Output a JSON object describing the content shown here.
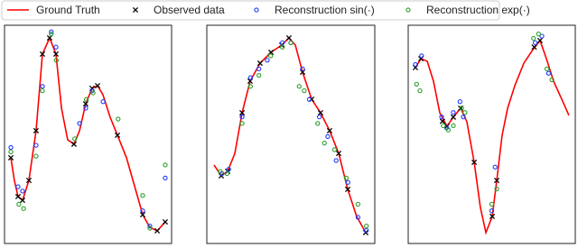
{
  "chart_data": [
    {
      "type": "line-scatter",
      "xlim": [
        0,
        100
      ],
      "ylim": [
        0,
        100
      ],
      "series": [
        {
          "name": "Ground Truth",
          "kind": "line",
          "color": "#ff0000",
          "x": [
            3.8,
            5.9,
            8.1,
            10.8,
            14.6,
            18.9,
            22.7,
            27.0,
            30.8,
            34.1,
            37.8,
            41.6,
            44.9,
            48.6,
            52.4,
            55.7,
            58.9,
            63.2,
            67.6,
            73.0,
            78.4,
            82.7,
            87.0,
            91.4,
            96.2
          ],
          "values": [
            39.3,
            28.9,
            21.5,
            19.8,
            28.9,
            51.7,
            86.8,
            94.2,
            86.8,
            62.0,
            47.5,
            45.5,
            51.7,
            64.0,
            71.1,
            72.3,
            68.2,
            57.9,
            49.6,
            39.3,
            24.8,
            13.2,
            7.4,
            5.8,
            9.9
          ]
        },
        {
          "name": "Observed data",
          "kind": "cross",
          "color": "#000000",
          "x": [
            3.8,
            8.1,
            10.8,
            14.6,
            18.9,
            22.7,
            27.0,
            30.8,
            41.6,
            48.6,
            52.4,
            55.7,
            67.6,
            82.7,
            91.4,
            96.2
          ],
          "values": [
            39.3,
            21.5,
            19.8,
            28.9,
            51.7,
            86.8,
            94.2,
            86.8,
            45.5,
            64.0,
            71.1,
            72.3,
            49.6,
            13.2,
            5.8,
            9.9
          ]
        },
        {
          "name": "Reconstruction sin(·)",
          "kind": "circle",
          "color": "#1f3dff",
          "x": [
            3.8,
            8.1,
            10.8,
            18.9,
            22.7,
            28.0,
            30.8,
            44.9,
            48.6,
            52.4,
            59.0,
            82.7,
            87.0,
            96.2
          ],
          "values": [
            44,
            26,
            24,
            45,
            72,
            97,
            90,
            55,
            62,
            70,
            65,
            15,
            8,
            30
          ]
        },
        {
          "name": "Reconstruction exp(·)",
          "kind": "circle",
          "color": "#2ca02c",
          "x": [
            3.8,
            8.6,
            11.4,
            18.9,
            22.7,
            28.0,
            31.0,
            42.0,
            49.0,
            53.0,
            68.0,
            82.7,
            87.0,
            96.2
          ],
          "values": [
            42,
            18,
            16,
            40,
            70,
            96,
            84,
            48,
            66,
            69,
            57,
            22,
            7,
            36
          ]
        }
      ]
    },
    {
      "type": "line-scatter",
      "xlim": [
        0,
        100
      ],
      "ylim": [
        0,
        100
      ],
      "series": [
        {
          "kind": "line",
          "color": "#ff0000",
          "x": [
            4.3,
            8.6,
            12.4,
            16.7,
            21.0,
            25.8,
            31.7,
            38.2,
            44.6,
            48.9,
            52.7,
            57.0,
            62.4,
            67.7,
            73.1,
            78.5,
            83.9,
            89.2,
            94.6
          ],
          "values": [
            36.0,
            31.0,
            33.1,
            41.3,
            59.9,
            74.4,
            82.6,
            87.6,
            90.9,
            94.2,
            90.9,
            78.5,
            66.1,
            59.9,
            51.7,
            41.3,
            24.8,
            12.4,
            5.0
          ]
        },
        {
          "kind": "cross",
          "color": "#000000",
          "x": [
            8.6,
            12.4,
            21.0,
            25.8,
            31.7,
            38.2,
            44.6,
            48.9,
            57.0,
            62.4,
            67.7,
            73.1,
            78.5,
            83.9,
            94.6
          ],
          "values": [
            31.0,
            33.1,
            59.9,
            74.4,
            82.6,
            87.6,
            90.9,
            94.2,
            78.5,
            66.1,
            59.9,
            51.7,
            41.3,
            24.8,
            5.0
          ]
        },
        {
          "kind": "circle",
          "color": "#1f3dff",
          "x": [
            9,
            13,
            21,
            26,
            31,
            36,
            45,
            50,
            57,
            61,
            67,
            72,
            77,
            84,
            90,
            95
          ],
          "values": [
            32,
            34,
            58,
            76,
            80,
            84,
            92,
            92,
            80,
            66,
            58,
            49,
            38,
            28,
            12,
            6
          ]
        },
        {
          "kind": "circle",
          "color": "#2ca02c",
          "x": [
            8,
            12,
            21,
            26,
            31,
            38,
            45,
            50,
            55,
            58,
            66,
            70,
            76,
            83,
            90,
            95
          ],
          "values": [
            33,
            32,
            55,
            72,
            77,
            86,
            90,
            92,
            72,
            70,
            55,
            46,
            43,
            30,
            18,
            8
          ]
        }
      ]
    },
    {
      "type": "line-scatter",
      "xlim": [
        0,
        100
      ],
      "ylim": [
        0,
        100
      ],
      "series": [
        {
          "kind": "line",
          "color": "#ff0000",
          "x": [
            4.3,
            7.6,
            11.4,
            15.1,
            18.9,
            23.2,
            27.0,
            31.4,
            35.1,
            39.5,
            43.2,
            46.5,
            50.3,
            53.0,
            56.2,
            59.5,
            63.8,
            69.2,
            74.6,
            78.9,
            82.7,
            87.0,
            91.9,
            96.2
          ],
          "values": [
            80.6,
            84.7,
            83.5,
            74.4,
            59.9,
            53.7,
            57.9,
            62.0,
            55.8,
            37.2,
            16.5,
            5.0,
            12.4,
            28.9,
            49.6,
            62.0,
            72.3,
            82.6,
            88.8,
            93.0,
            84.7,
            74.4,
            66.1,
            58.7
          ]
        },
        {
          "kind": "cross",
          "color": "#000000",
          "x": [
            4.3,
            7.6,
            20.5,
            23.2,
            27.0,
            31.4,
            39.5,
            50.3,
            53.0,
            75.4,
            78.9
          ],
          "values": [
            80.6,
            84.7,
            56,
            53.7,
            57.9,
            62.0,
            37.2,
            12.4,
            28.9,
            90,
            93.0
          ]
        },
        {
          "kind": "circle",
          "color": "#1f3dff",
          "x": [
            4.3,
            8,
            20,
            23,
            27,
            31,
            33,
            50,
            52,
            76,
            80,
            84
          ],
          "values": [
            82,
            86,
            58,
            53,
            60,
            65,
            58,
            15,
            35,
            92,
            95,
            78
          ]
        },
        {
          "kind": "circle",
          "color": "#2ca02c",
          "x": [
            5,
            7,
            21,
            24,
            27,
            32,
            34,
            50,
            53,
            75,
            78,
            83,
            86
          ],
          "values": [
            73,
            70,
            54,
            52,
            54,
            62,
            60,
            18,
            25,
            94,
            96,
            80,
            75
          ]
        }
      ]
    }
  ]
}
